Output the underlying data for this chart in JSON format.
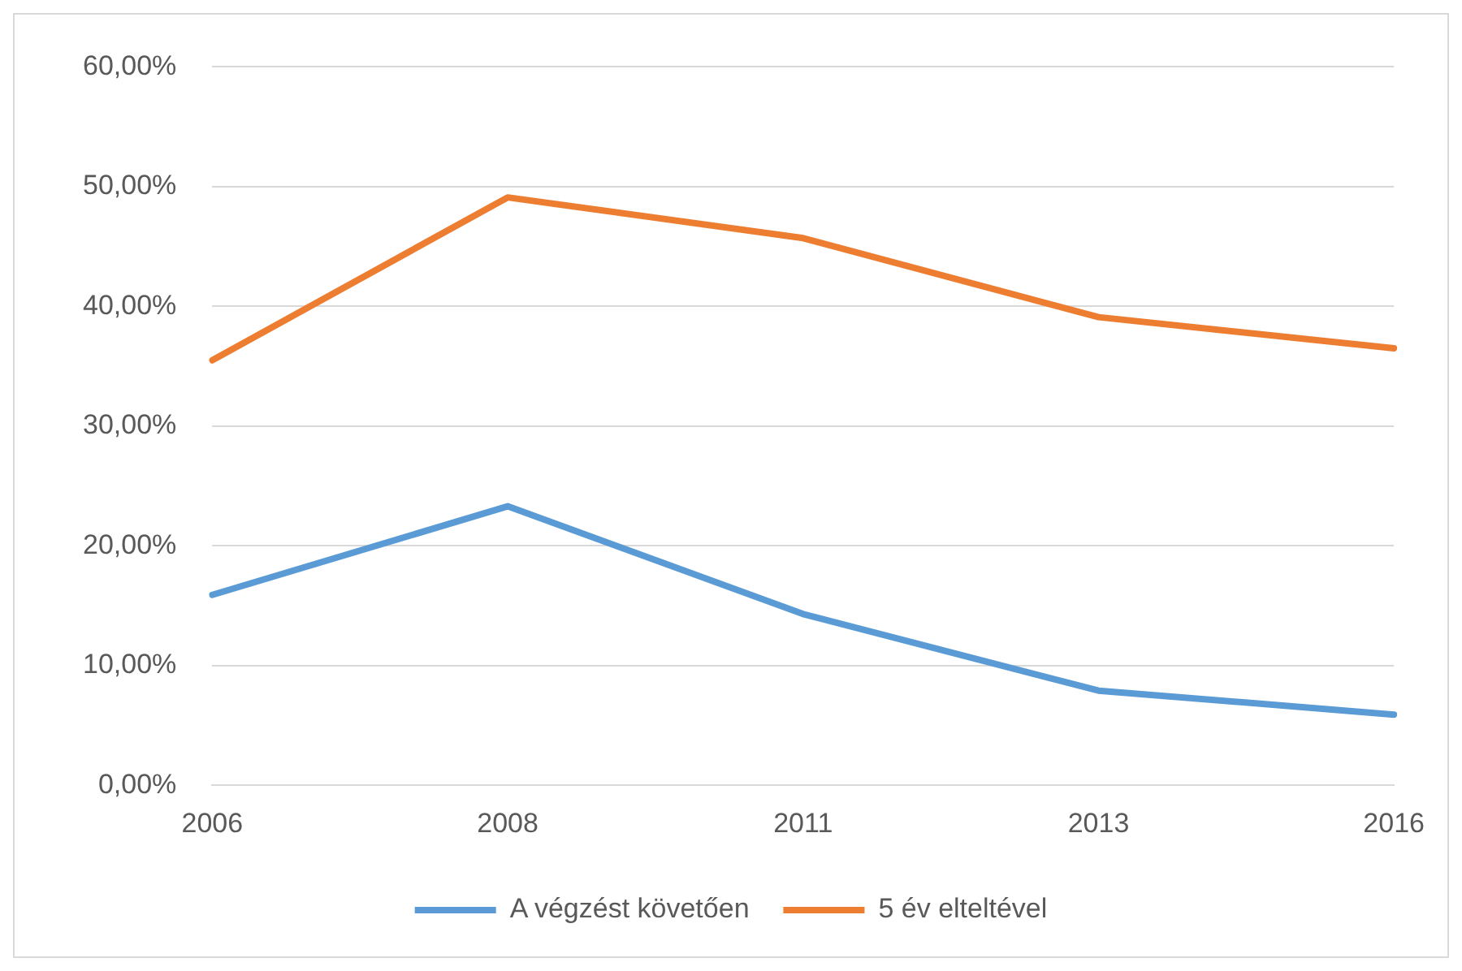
{
  "chart_data": {
    "type": "line",
    "categories": [
      "2006",
      "2008",
      "2011",
      "2013",
      "2016"
    ],
    "series": [
      {
        "name": "A végzést követően",
        "color": "#5b9bd5",
        "values": [
          15.9,
          23.3,
          14.3,
          7.9,
          5.9
        ]
      },
      {
        "name": "5 év elteltével",
        "color": "#ed7d31",
        "values": [
          35.5,
          49.1,
          45.7,
          39.1,
          36.5
        ]
      }
    ],
    "ylim": [
      0,
      60
    ],
    "yticks": [
      {
        "value": 0,
        "label": "0,00%"
      },
      {
        "value": 10,
        "label": "10,00%"
      },
      {
        "value": 20,
        "label": "20,00%"
      },
      {
        "value": 30,
        "label": "30,00%"
      },
      {
        "value": 40,
        "label": "40,00%"
      },
      {
        "value": 50,
        "label": "50,00%"
      },
      {
        "value": 60,
        "label": "60,00%"
      }
    ],
    "grid": "y",
    "legend": "bottom",
    "marker": "none",
    "line_style": "solid"
  }
}
